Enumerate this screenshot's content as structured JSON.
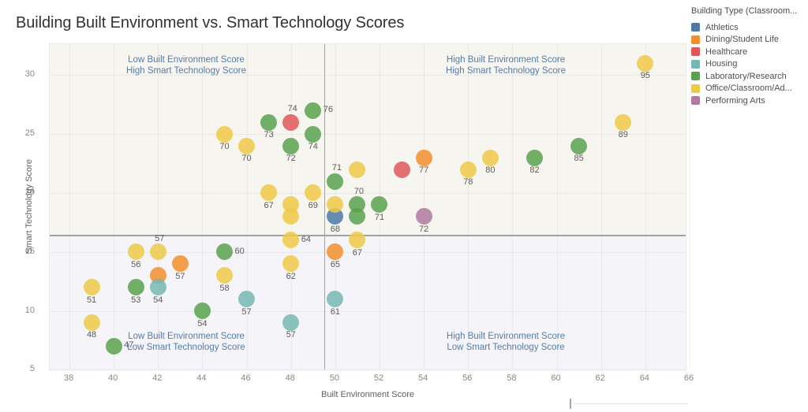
{
  "title": "Building Built Environment vs. Smart Technology Scores",
  "legend": {
    "title": "Building Type  (Classroom...",
    "items": [
      {
        "key": "athletics",
        "label": "Athletics",
        "color": "#4e79a7"
      },
      {
        "key": "dining",
        "label": "Dining/Student Life",
        "color": "#f28e2b"
      },
      {
        "key": "healthcare",
        "label": "Healthcare",
        "color": "#e15759"
      },
      {
        "key": "housing",
        "label": "Housing",
        "color": "#76b7b2"
      },
      {
        "key": "laboratory",
        "label": "Laboratory/Research",
        "color": "#59a14f"
      },
      {
        "key": "office",
        "label": "Office/Classroom/Ad...",
        "color": "#edc948"
      },
      {
        "key": "performing",
        "label": "Performing Arts",
        "color": "#b07aa1"
      }
    ]
  },
  "axes": {
    "x": {
      "label": "Built Environment Score",
      "ticks": [
        38,
        40,
        42,
        44,
        46,
        48,
        50,
        52,
        54,
        56,
        58,
        60,
        62,
        64,
        66
      ]
    },
    "y": {
      "label": "Smart Technology Score",
      "ticks": [
        5,
        10,
        15,
        20,
        25,
        30
      ]
    }
  },
  "quadrants": {
    "top_left": {
      "line1": "Low Built Environment Score",
      "line2": "High Smart Technology Score"
    },
    "top_right": {
      "line1": "High Built Environment Score",
      "line2": "High Smart Technology Score"
    },
    "bottom_left": {
      "line1": "Low Built Environment Score",
      "line2": "Low Smart Technology Score"
    },
    "bottom_right": {
      "line1": "High Built Environment Score",
      "line2": "Low Smart Technology Score"
    }
  },
  "chart_data": {
    "type": "scatter",
    "xlabel": "Built Environment Score",
    "ylabel": "Smart Technology Score",
    "xlim": [
      37.1,
      66.0
    ],
    "ylim": [
      4.9,
      32.7
    ],
    "grid": true,
    "legend_position": "top-right",
    "ref_lines": {
      "x": 49.5,
      "y": 16.45
    },
    "series": [
      {
        "key": "athletics",
        "name": "Athletics",
        "color": "#4e79a7",
        "points": [
          {
            "x": 50,
            "y": 18,
            "label": "68",
            "pos": "b"
          }
        ]
      },
      {
        "key": "dining",
        "name": "Dining/Student Life",
        "color": "#f28e2b",
        "points": [
          {
            "x": 42,
            "y": 13,
            "label": null
          },
          {
            "x": 43,
            "y": 14,
            "label": "57",
            "pos": "b"
          },
          {
            "x": 50,
            "y": 15,
            "label": "65",
            "pos": "b"
          },
          {
            "x": 54,
            "y": 23,
            "label": "77",
            "pos": "b"
          }
        ]
      },
      {
        "key": "healthcare",
        "name": "Healthcare",
        "color": "#e15759",
        "points": [
          {
            "x": 48,
            "y": 26,
            "label": "74",
            "pos": "a"
          },
          {
            "x": 53,
            "y": 22,
            "label": null
          }
        ]
      },
      {
        "key": "housing",
        "name": "Housing",
        "color": "#76b7b2",
        "points": [
          {
            "x": 42,
            "y": 12,
            "label": "54",
            "pos": "b"
          },
          {
            "x": 46,
            "y": 11,
            "label": "57",
            "pos": "b"
          },
          {
            "x": 48,
            "y": 9,
            "label": "57",
            "pos": "b"
          },
          {
            "x": 50,
            "y": 11,
            "label": "61",
            "pos": "b"
          }
        ]
      },
      {
        "key": "laboratory",
        "name": "Laboratory/Research",
        "color": "#59a14f",
        "points": [
          {
            "x": 40,
            "y": 7,
            "label": "47",
            "pos": "r"
          },
          {
            "x": 41,
            "y": 12,
            "label": "53",
            "pos": "b"
          },
          {
            "x": 44,
            "y": 10,
            "label": "54",
            "pos": "b"
          },
          {
            "x": 45,
            "y": 15,
            "label": "60",
            "pos": "r"
          },
          {
            "x": 47,
            "y": 26,
            "label": "73",
            "pos": "b"
          },
          {
            "x": 48,
            "y": 24,
            "label": "72",
            "pos": "b"
          },
          {
            "x": 49,
            "y": 27,
            "label": "76",
            "pos": "r"
          },
          {
            "x": 49,
            "y": 25,
            "label": "74",
            "pos": "b"
          },
          {
            "x": 50,
            "y": 21,
            "label": "71",
            "pos": "a"
          },
          {
            "x": 51,
            "y": 19,
            "label": "70",
            "pos": "a"
          },
          {
            "x": 51,
            "y": 18,
            "label": null
          },
          {
            "x": 52,
            "y": 19,
            "label": "71",
            "pos": "b"
          },
          {
            "x": 59,
            "y": 23,
            "label": "82",
            "pos": "b"
          },
          {
            "x": 61,
            "y": 24,
            "label": "85",
            "pos": "b"
          }
        ]
      },
      {
        "key": "office",
        "name": "Office/Classroom/Ad...",
        "color": "#edc948",
        "points": [
          {
            "x": 39,
            "y": 12,
            "label": "51",
            "pos": "b"
          },
          {
            "x": 39,
            "y": 9,
            "label": "48",
            "pos": "b"
          },
          {
            "x": 41,
            "y": 15,
            "label": "56",
            "pos": "b"
          },
          {
            "x": 42,
            "y": 15,
            "label": "57",
            "pos": "a"
          },
          {
            "x": 45,
            "y": 25,
            "label": "70",
            "pos": "b"
          },
          {
            "x": 45,
            "y": 13,
            "label": "58",
            "pos": "b"
          },
          {
            "x": 46,
            "y": 24,
            "label": "70",
            "pos": "b"
          },
          {
            "x": 47,
            "y": 20,
            "label": "67",
            "pos": "b"
          },
          {
            "x": 48,
            "y": 19,
            "label": null
          },
          {
            "x": 48,
            "y": 18,
            "label": null
          },
          {
            "x": 48,
            "y": 16,
            "label": "64",
            "pos": "r"
          },
          {
            "x": 48,
            "y": 14,
            "label": "62",
            "pos": "b"
          },
          {
            "x": 49,
            "y": 20,
            "label": "69",
            "pos": "b"
          },
          {
            "x": 50,
            "y": 19,
            "label": null
          },
          {
            "x": 51,
            "y": 22,
            "label": null
          },
          {
            "x": 51,
            "y": 16,
            "label": "67",
            "pos": "b"
          },
          {
            "x": 56,
            "y": 22,
            "label": "78",
            "pos": "b"
          },
          {
            "x": 57,
            "y": 23,
            "label": "80",
            "pos": "b"
          },
          {
            "x": 63,
            "y": 26,
            "label": "89",
            "pos": "b"
          },
          {
            "x": 64,
            "y": 31,
            "label": "95",
            "pos": "b"
          }
        ]
      },
      {
        "key": "performing",
        "name": "Performing Arts",
        "color": "#b07aa1",
        "points": [
          {
            "x": 54,
            "y": 18,
            "label": "72",
            "pos": "b"
          }
        ]
      }
    ]
  }
}
